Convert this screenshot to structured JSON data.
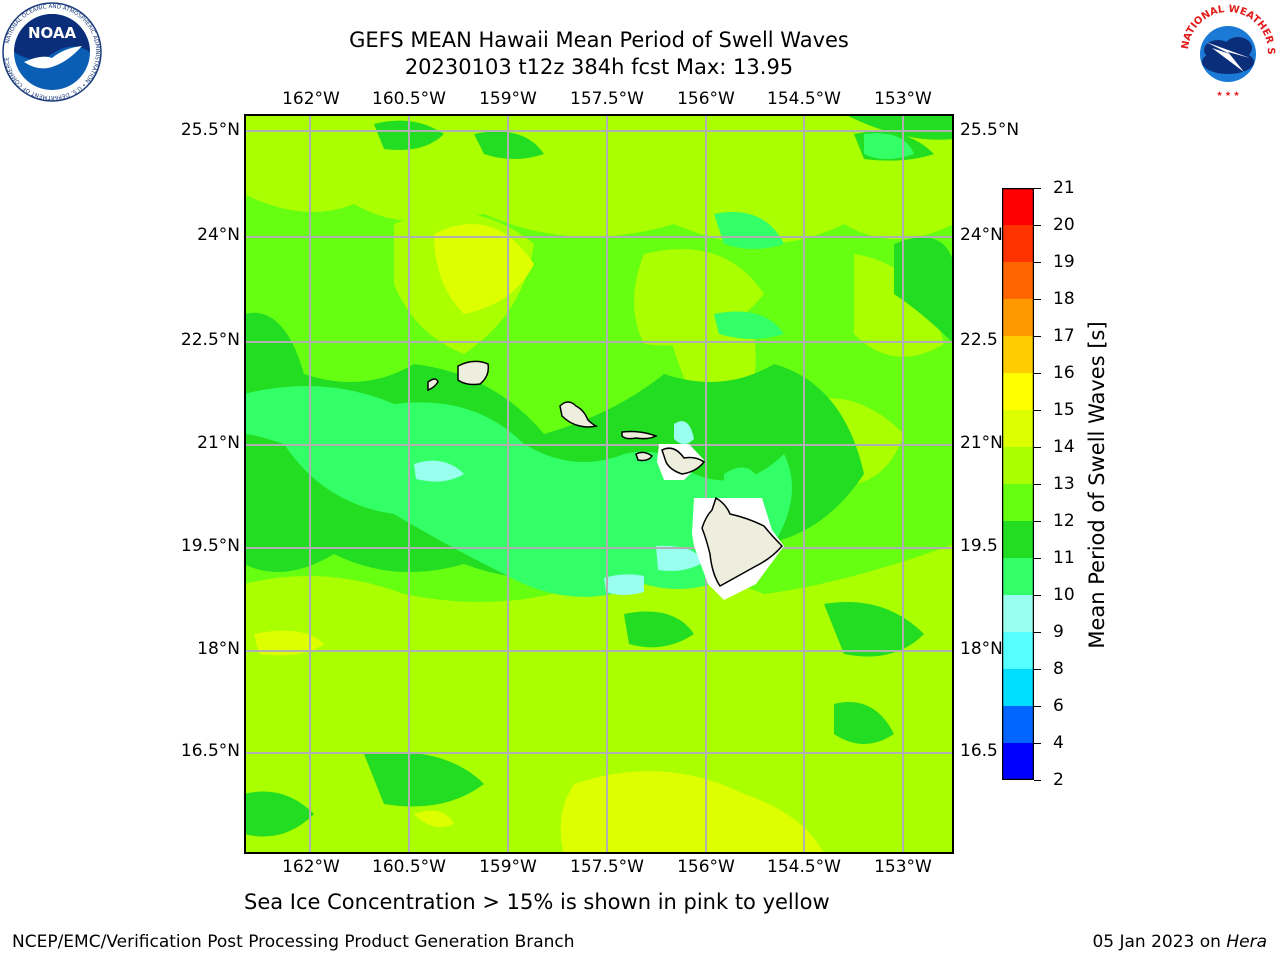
{
  "header": {
    "title_line1": "GEFS MEAN Hawaii Mean Period of Swell Waves",
    "title_line2": "20230103 t12z 384h fcst   Max: 13.95"
  },
  "map": {
    "lon_labels": [
      "162°W",
      "160.5°W",
      "159°W",
      "157.5°W",
      "156°W",
      "154.5°W",
      "153°W"
    ],
    "lat_labels": [
      "25.5°N",
      "24°N",
      "22.5°N",
      "21°N",
      "19.5°N",
      "18°N",
      "16.5°N"
    ],
    "lat_labels_right": [
      "25.5°N",
      "24°N",
      "22.5",
      "21°N",
      "19.5",
      "18°N",
      "16.5"
    ],
    "islands": [
      "Kauai",
      "Niihau",
      "Oahu",
      "Molokai",
      "Lanai",
      "Maui",
      "Hawaii"
    ]
  },
  "colorbar": {
    "label": "Mean Period of Swell Waves [s]",
    "ticks": [
      "2",
      "4",
      "6",
      "8",
      "9",
      "10",
      "11",
      "12",
      "13",
      "14",
      "15",
      "16",
      "17",
      "18",
      "19",
      "20",
      "21"
    ],
    "colors": [
      "#0000ff",
      "#0066ff",
      "#00ddff",
      "#55ffff",
      "#99ffee",
      "#33ff66",
      "#22dd22",
      "#66ff11",
      "#aaff00",
      "#ddff00",
      "#ffff00",
      "#ffcc00",
      "#ff9900",
      "#ff6600",
      "#ff3300",
      "#ff0000"
    ]
  },
  "note": "Sea Ice Concentration > 15% is shown in pink to yellow",
  "footer": {
    "left": "NCEP/EMC/Verification Post Processing Product Generation Branch",
    "right_date": "05 Jan 2023 on ",
    "right_machine": "Hera"
  },
  "logos": {
    "noaa_text": "NOAA",
    "noaa_ring": "NATIONAL OCEANIC AND ATMOSPHERIC ADMINISTRATION • U.S. DEPARTMENT OF COMMERCE",
    "nws_ring": "NATIONAL WEATHER SERVICE"
  }
}
